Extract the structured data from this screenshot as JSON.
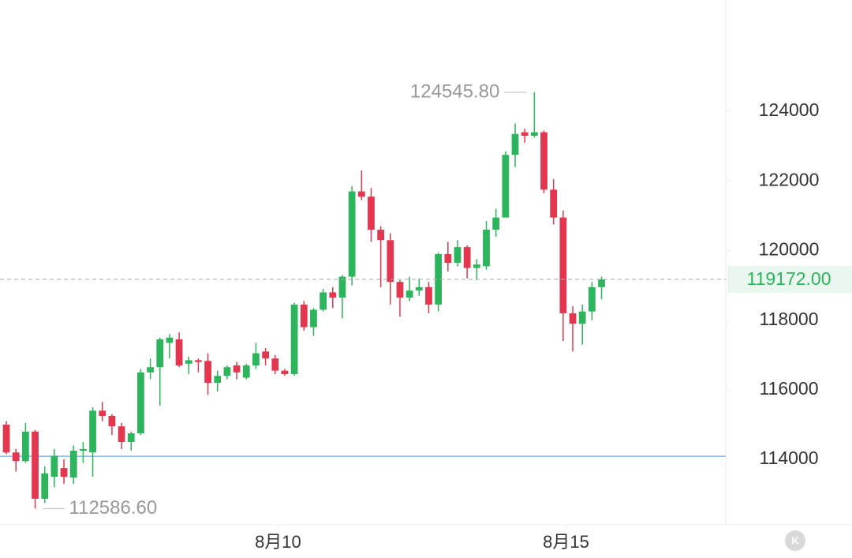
{
  "chart_data": {
    "type": "candlestick",
    "open": [
      115000,
      114200,
      113950,
      114800,
      112870,
      113500,
      113750,
      113480,
      114250,
      114200,
      115400,
      115250,
      114950,
      114500,
      114750,
      116500,
      116650,
      117350,
      117450,
      116750,
      116850,
      116830,
      116200,
      116400,
      116700,
      116350,
      116700,
      117100,
      116900,
      116550,
      116450,
      118450,
      117800,
      118300,
      118800,
      118650,
      119250,
      121700,
      121550,
      120600,
      120300,
      119100,
      118650,
      118850,
      118950,
      118450,
      119900,
      119650,
      120100,
      119500,
      119550,
      120600,
      120950,
      122750,
      123400,
      123300,
      123400,
      121750,
      120950,
      118200,
      117900,
      118250,
      118950
    ],
    "high": [
      115100,
      114300,
      115050,
      114850,
      113800,
      114300,
      114000,
      114400,
      114500,
      115500,
      115650,
      115300,
      115050,
      114800,
      116600,
      116900,
      117500,
      117600,
      117650,
      116950,
      116900,
      117050,
      116550,
      116700,
      116800,
      116750,
      117350,
      117200,
      117000,
      116600,
      118500,
      118550,
      118350,
      118900,
      118950,
      119300,
      121850,
      122300,
      121800,
      120700,
      120500,
      119150,
      119250,
      119200,
      119100,
      119950,
      120250,
      120300,
      120150,
      119750,
      120850,
      121200,
      122850,
      123650,
      123500,
      124545.8,
      123450,
      122050,
      121150,
      118400,
      118450,
      119100,
      119250
    ],
    "low": [
      114150,
      113650,
      113900,
      112586.6,
      112750,
      113200,
      113300,
      113300,
      113900,
      113500,
      115100,
      114700,
      114300,
      114250,
      114700,
      116300,
      115550,
      116900,
      116650,
      116450,
      116500,
      115850,
      115950,
      116300,
      116300,
      116300,
      116600,
      116700,
      116450,
      116400,
      116400,
      117700,
      117550,
      118250,
      118350,
      118050,
      119000,
      121450,
      120250,
      118950,
      118450,
      118100,
      118550,
      118700,
      118200,
      118250,
      119400,
      119550,
      119200,
      119150,
      119450,
      120400,
      120950,
      122400,
      123100,
      123250,
      121650,
      120750,
      117400,
      117100,
      117300,
      118000,
      118600
    ],
    "close": [
      114200,
      113950,
      114800,
      112870,
      113600,
      114100,
      113500,
      114250,
      114300,
      115400,
      115250,
      114950,
      114500,
      114750,
      116500,
      116650,
      117450,
      117500,
      116700,
      116850,
      116800,
      116200,
      116400,
      116650,
      116500,
      116700,
      117050,
      116900,
      116550,
      116450,
      118450,
      117800,
      118300,
      118800,
      118650,
      119250,
      121700,
      121550,
      120600,
      120300,
      119100,
      118650,
      118850,
      118950,
      118450,
      119900,
      119650,
      120100,
      119500,
      119600,
      120600,
      120950,
      122750,
      123350,
      123300,
      123400,
      121750,
      120950,
      118200,
      117900,
      118250,
      118950,
      119172
    ],
    "up_color": "#2db55d",
    "down_color": "#e2374e",
    "xlim": [
      -0.66,
      74.94
    ],
    "ylim": [
      112120,
      127200
    ],
    "xticks": [
      {
        "value": 28.3,
        "label": "8月10"
      },
      {
        "value": 58.3,
        "label": "8月15"
      }
    ],
    "yticks": [
      114000,
      116000,
      118000,
      120000,
      122000,
      124000
    ],
    "high_label": {
      "value": 124545.8,
      "label": "124545.80"
    },
    "low_label": {
      "value": 112586.6,
      "label": "112586.60"
    },
    "last_price": {
      "value": 119172,
      "label": "119172.00"
    },
    "horizontal_line": {
      "value": 114090,
      "color": "#7fb6f0"
    },
    "icon_label": "K"
  }
}
